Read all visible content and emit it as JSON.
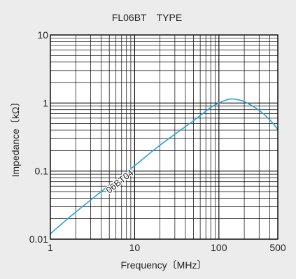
{
  "chart_data": {
    "type": "line",
    "title": "FL06BT TYPE",
    "xlabel": "Frequency〔MHz〕",
    "ylabel": "Impedance〔kΩ〕",
    "xscale": "log",
    "yscale": "log",
    "xlim": [
      1,
      500
    ],
    "ylim": [
      0.01,
      10
    ],
    "x_ticks": [
      1,
      10,
      100,
      500
    ],
    "x_tick_labels": [
      "1",
      "10",
      "100",
      "500"
    ],
    "y_ticks": [
      0.01,
      0.1,
      1,
      10
    ],
    "y_tick_labels": [
      "0.01",
      "0.1",
      "1",
      "10"
    ],
    "grid": true,
    "series": [
      {
        "name": "06BT04",
        "color": "#29a3d6",
        "x": [
          1,
          2,
          5,
          10,
          20,
          50,
          80,
          100,
          120,
          140,
          160,
          200,
          300,
          400,
          500
        ],
        "y": [
          0.012,
          0.025,
          0.062,
          0.12,
          0.24,
          0.55,
          0.86,
          1.0,
          1.1,
          1.15,
          1.13,
          1.05,
          0.78,
          0.57,
          0.41
        ]
      }
    ]
  }
}
